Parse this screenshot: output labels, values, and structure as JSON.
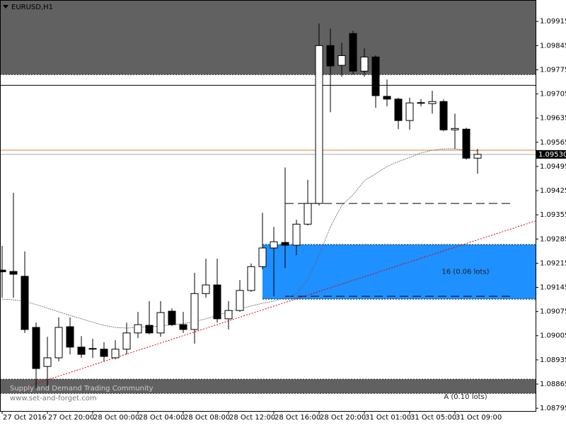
{
  "chart_data": {
    "type": "candlestick",
    "title": "EURUSD,H1",
    "categories": [
      "27 Oct 2016",
      null,
      null,
      null,
      "27 Oct 20:00",
      null,
      null,
      null,
      "28 Oct 00:00",
      null,
      null,
      null,
      "28 Oct 04:00",
      null,
      null,
      null,
      "28 Oct 08:00",
      null,
      null,
      null,
      "28 Oct 12:00",
      null,
      null,
      null,
      "28 Oct 16:00",
      null,
      null,
      null,
      "28 Oct 20:00",
      null,
      null,
      null,
      "31 Oct 01:00",
      null,
      null,
      null,
      "31 Oct 05:00",
      null,
      null,
      null,
      "31 Oct 09:00",
      null,
      null
    ],
    "open": [
      1.09195,
      1.09191,
      1.09177,
      1.09029,
      1.08916,
      1.08941,
      1.09031,
      1.08972,
      1.08968,
      1.08966,
      1.08941,
      1.08966,
      1.09013,
      1.09035,
      1.09013,
      1.09076,
      1.09037,
      1.09023,
      1.09127,
      1.09152,
      1.09054,
      1.09078,
      1.09136,
      1.09205,
      1.09259,
      1.09275,
      1.09267,
      1.09328,
      1.09388,
      1.09845,
      1.09788,
      1.0988,
      1.09771,
      1.09812,
      1.09698,
      1.0969,
      1.09628,
      1.0968,
      1.09677,
      1.09683,
      1.09601,
      1.09603,
      1.09519
    ],
    "high": [
      1.09265,
      1.09419,
      1.09249,
      1.09043,
      1.09002,
      1.09058,
      1.09058,
      1.09004,
      1.08996,
      1.08986,
      1.08992,
      1.09043,
      1.09074,
      1.09105,
      1.09105,
      1.09084,
      1.09074,
      1.09187,
      1.09228,
      1.09228,
      1.09105,
      1.09166,
      1.09214,
      1.09361,
      1.0932,
      1.09492,
      1.09341,
      1.09456,
      1.09909,
      1.09894,
      1.09853,
      1.09888,
      1.09837,
      1.09817,
      1.09747,
      1.09694,
      1.09694,
      1.0969,
      1.09714,
      1.09689,
      1.09648,
      1.09607,
      1.09546
    ],
    "low": [
      1.09115,
      1.09115,
      1.09013,
      1.08853,
      1.08859,
      1.08931,
      1.08951,
      1.08941,
      1.08941,
      1.08931,
      1.08937,
      1.08951,
      1.08998,
      1.09009,
      1.09002,
      1.09033,
      1.09013,
      1.08982,
      1.09115,
      1.09043,
      1.09023,
      1.09074,
      1.09132,
      1.09197,
      1.09119,
      1.09201,
      1.09238,
      1.09324,
      1.09382,
      1.09652,
      1.09755,
      1.09761,
      1.09755,
      1.09665,
      1.09669,
      1.09603,
      1.09601,
      1.09669,
      1.09648,
      1.09597,
      1.09546,
      1.09515,
      1.09474
    ],
    "close": [
      1.0919,
      1.09183,
      1.09023,
      1.0891,
      1.08941,
      1.09029,
      1.08972,
      1.08951,
      1.08966,
      1.08945,
      1.08966,
      1.09013,
      1.09037,
      1.09013,
      1.09072,
      1.09037,
      1.09023,
      1.09127,
      1.09152,
      1.09054,
      1.09078,
      1.09136,
      1.09205,
      1.09259,
      1.09277,
      1.09267,
      1.09328,
      1.09388,
      1.09845,
      1.09786,
      1.09816,
      1.09771,
      1.09812,
      1.097,
      1.0969,
      1.09628,
      1.09679,
      1.09679,
      1.09683,
      1.09601,
      1.09605,
      1.09519,
      1.0953
    ],
    "moving_average": [
      1.09111,
      1.09109,
      1.09105,
      1.09095,
      1.09085,
      1.09074,
      1.09064,
      1.09054,
      1.09044,
      1.09035,
      1.09029,
      1.09027,
      1.09029,
      1.09031,
      1.09033,
      1.09037,
      1.0904,
      1.09046,
      1.09054,
      1.09064,
      1.09074,
      1.09083,
      1.09091,
      1.09099,
      1.09105,
      1.09115,
      1.09126,
      1.09167,
      1.09238,
      1.0932,
      1.09382,
      1.09413,
      1.09454,
      1.09474,
      1.09495,
      1.09509,
      1.09521,
      1.09534,
      1.09542,
      1.09546,
      1.09546,
      1.09542,
      1.0954
    ],
    "ylim": [
      1.08787,
      1.09977
    ],
    "yticks": [
      1.09915,
      1.09845,
      1.09775,
      1.09705,
      1.09635,
      1.09565,
      1.09495,
      1.09425,
      1.09355,
      1.09285,
      1.09215,
      1.09145,
      1.09075,
      1.09005,
      1.08935,
      1.08865,
      1.08795
    ],
    "current_price": {
      "value": 1.0953,
      "label": "1.09530"
    },
    "zones": [
      {
        "top": 1.09977,
        "bottom": 1.09761,
        "color": "#616161"
      },
      {
        "top": 1.09269,
        "bottom": 1.09111,
        "color": "#1e90ff",
        "label": "16 (0.06 lots)"
      },
      {
        "top": 1.08879,
        "bottom": 1.08838,
        "color": "#616161",
        "label": "A (0.10 lots)"
      }
    ],
    "hlines": [
      1.0973,
      1.09542
    ],
    "trendline": {
      "x": [
        2.3,
        47.1
      ],
      "y": [
        1.08859,
        1.09337
      ]
    },
    "watermark": [
      "Supply and Demand Trading Community",
      "www.set-and-forget.com"
    ]
  }
}
